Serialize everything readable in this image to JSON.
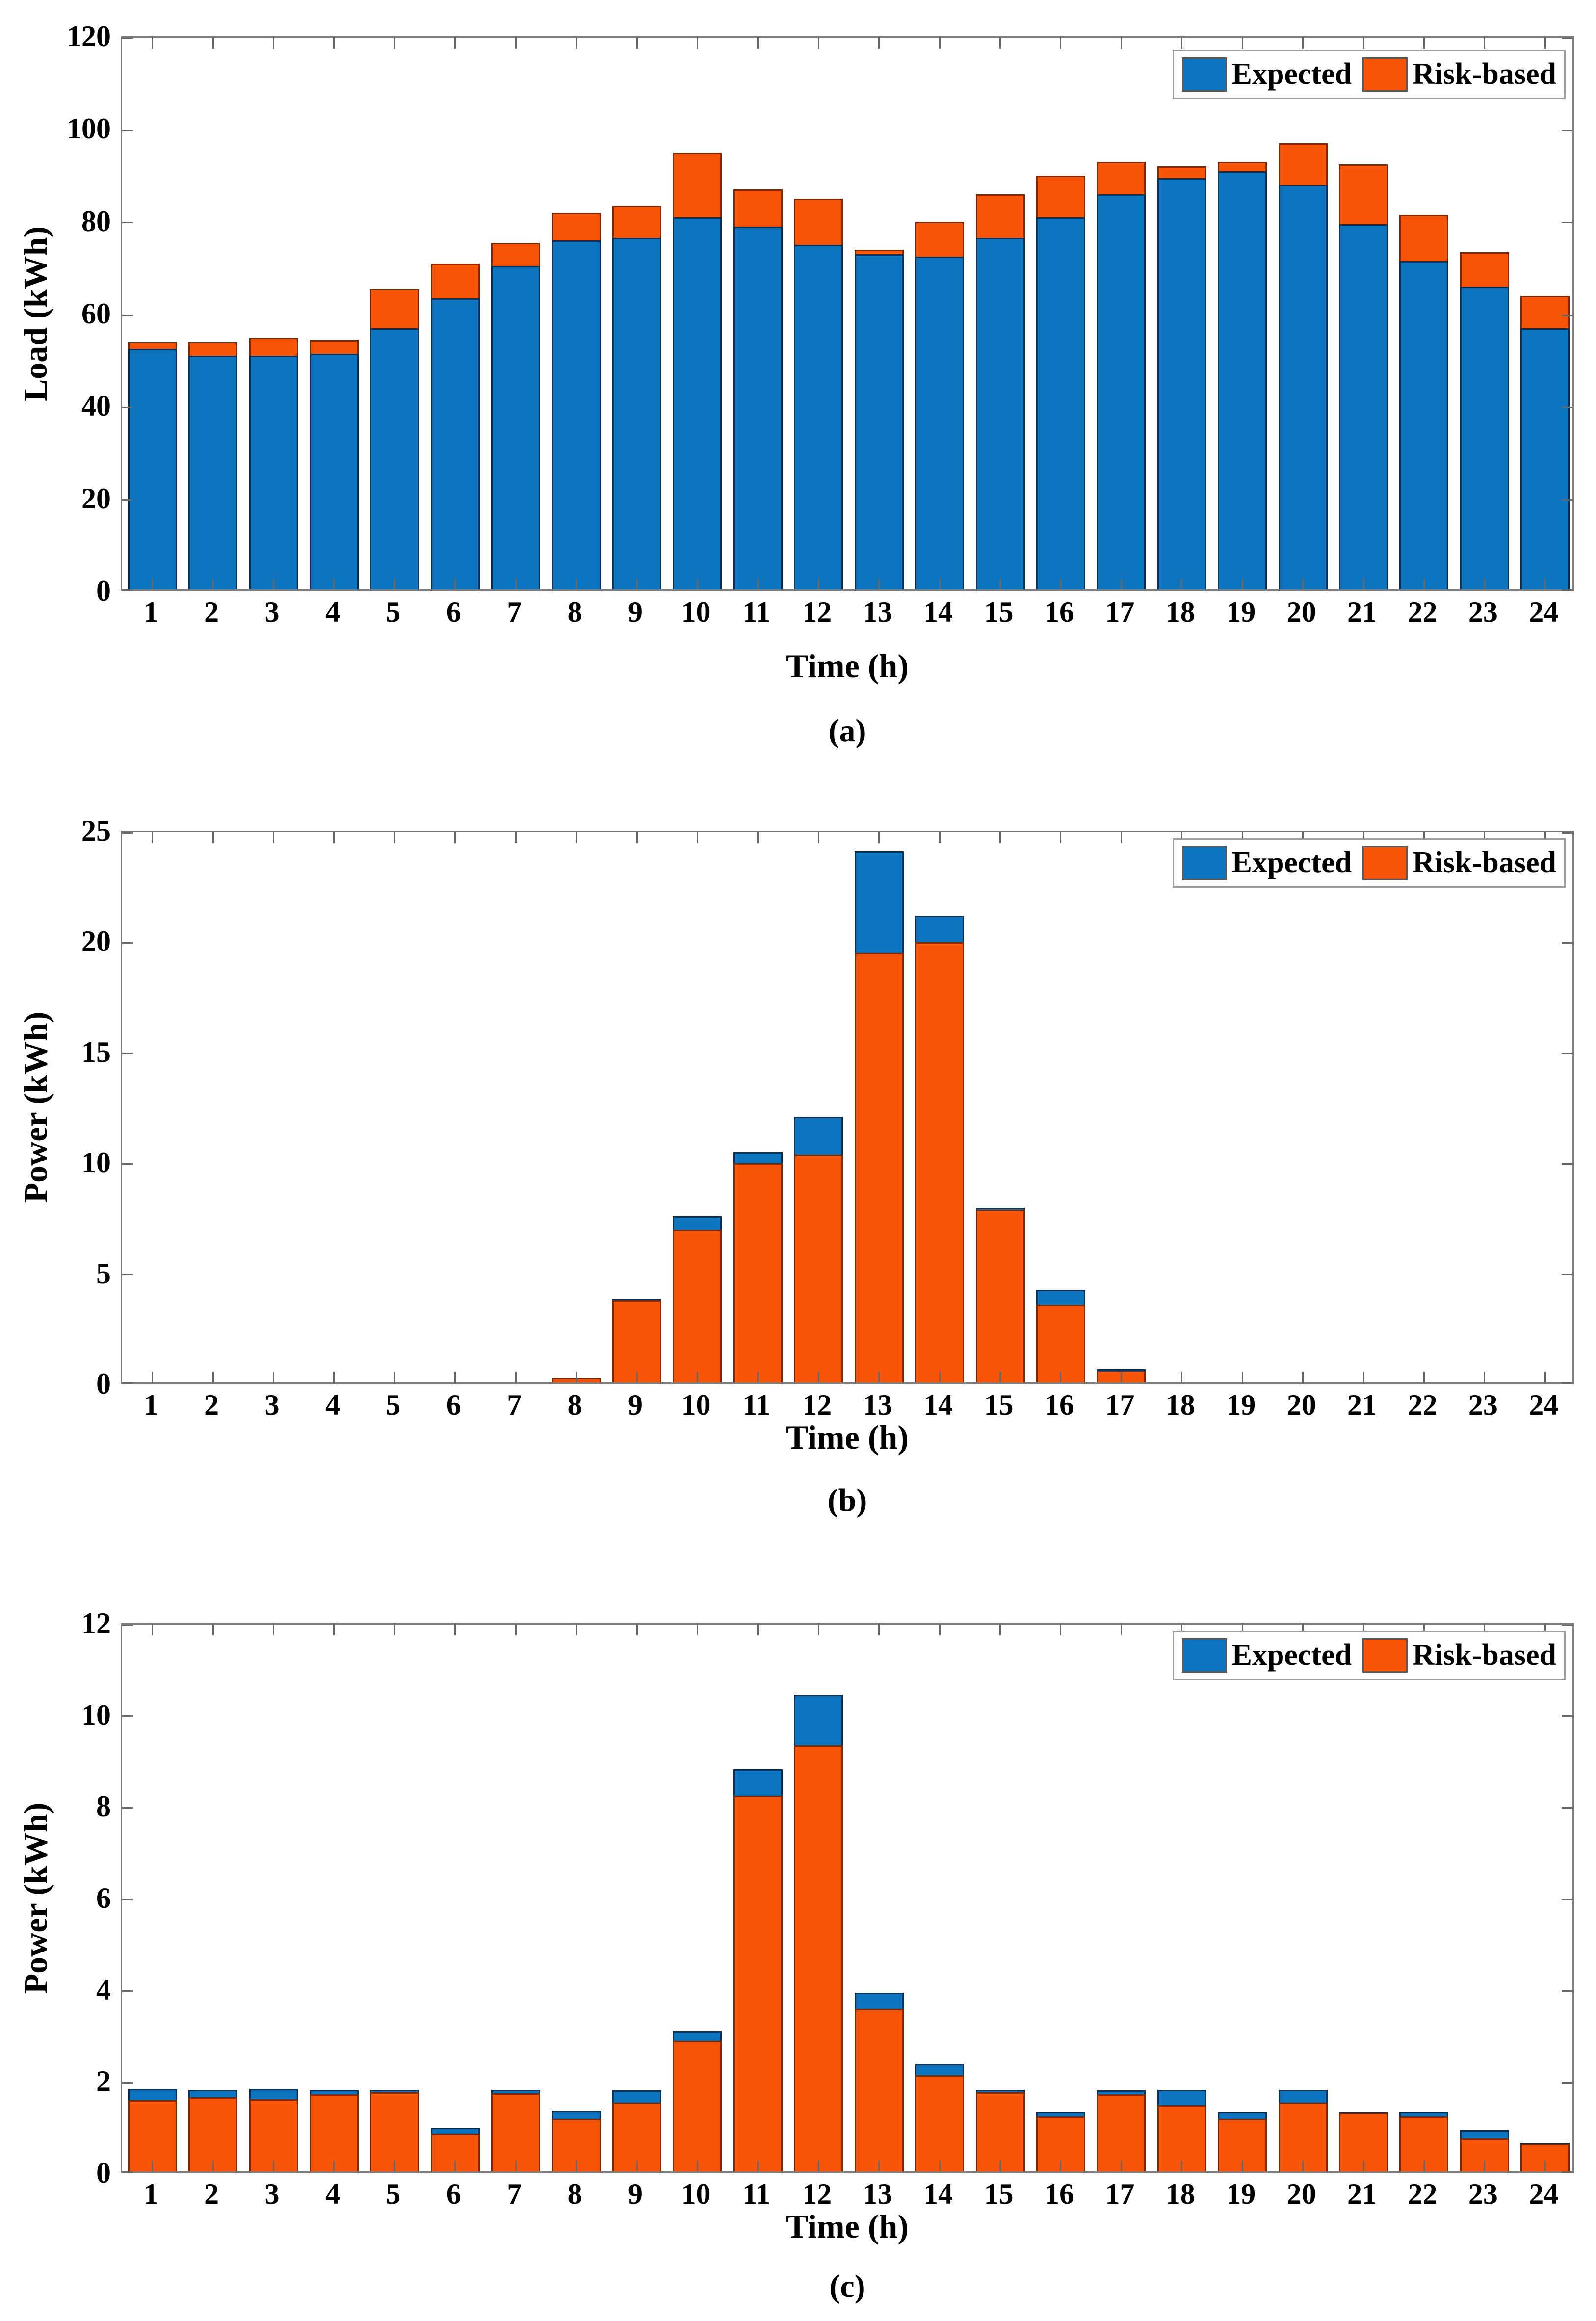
{
  "figure": {
    "description": "Three stacked panels of 24-hour bar charts comparing Expected and Risk-based profiles",
    "panels": [
      "(a)",
      "(b)",
      "(c)"
    ]
  },
  "colors": {
    "expected_fill": "#0d74bf",
    "expected_edge": "#0b2f52",
    "risk_fill": "#f85508",
    "risk_edge": "#7c2900",
    "axis": "#7c7c7c",
    "tick": "#686868",
    "text": "#000000",
    "legend_border": "#9c9c9c"
  },
  "chart_data": [
    {
      "panel": "(a)",
      "type": "bar",
      "overlay": true,
      "xlabel": "Time (h)",
      "ylabel": "Load (kWh)",
      "ylim": [
        0,
        120
      ],
      "yticks": [
        0,
        20,
        40,
        60,
        80,
        100,
        120
      ],
      "categories": [
        1,
        2,
        3,
        4,
        5,
        6,
        7,
        8,
        9,
        10,
        11,
        12,
        13,
        14,
        15,
        16,
        17,
        18,
        19,
        20,
        21,
        22,
        23,
        24
      ],
      "legend_position": "top-right",
      "front_series": "Expected",
      "series": [
        {
          "name": "Expected",
          "color_key": "expected",
          "values": [
            52,
            50.5,
            50.5,
            51,
            56.5,
            63,
            70,
            75.5,
            76,
            80.5,
            78.5,
            74.5,
            72.5,
            72,
            76,
            80.5,
            85.5,
            89,
            90.5,
            87.5,
            79,
            71,
            65.5,
            56.5
          ]
        },
        {
          "name": "Risk-based",
          "color_key": "risk",
          "values": [
            53.5,
            53.5,
            54.5,
            54,
            65,
            70.5,
            75,
            81.5,
            83,
            94.5,
            86.5,
            84.5,
            73.5,
            79.5,
            85.5,
            89.5,
            92.5,
            91.5,
            92.5,
            96.5,
            92,
            81,
            73,
            63.5
          ]
        }
      ]
    },
    {
      "panel": "(b)",
      "type": "bar",
      "overlay": true,
      "xlabel": "Time (h)",
      "ylabel": "Power (kWh)",
      "ylim": [
        0,
        25
      ],
      "yticks": [
        0,
        5,
        10,
        15,
        20,
        25
      ],
      "categories": [
        1,
        2,
        3,
        4,
        5,
        6,
        7,
        8,
        9,
        10,
        11,
        12,
        13,
        14,
        15,
        16,
        17,
        18,
        19,
        20,
        21,
        22,
        23,
        24
      ],
      "legend_position": "top-right",
      "front_series": "Risk-based",
      "series": [
        {
          "name": "Expected",
          "color_key": "expected",
          "values": [
            0,
            0,
            0,
            0,
            0,
            0,
            0,
            0.2,
            3.75,
            7.5,
            10.4,
            12,
            24,
            21.1,
            7.9,
            4.2,
            0.6,
            0,
            0,
            0,
            0,
            0,
            0,
            0
          ]
        },
        {
          "name": "Risk-based",
          "color_key": "risk",
          "values": [
            0,
            0,
            0,
            0,
            0,
            0,
            0,
            0.2,
            3.7,
            6.9,
            9.9,
            10.3,
            19.4,
            19.9,
            7.8,
            3.5,
            0.5,
            0,
            0,
            0,
            0,
            0,
            0,
            0
          ]
        }
      ]
    },
    {
      "panel": "(c)",
      "type": "bar",
      "overlay": true,
      "xlabel": "Time (h)",
      "ylabel": "Power (kWh)",
      "ylim": [
        0,
        12
      ],
      "yticks": [
        0,
        2,
        4,
        6,
        8,
        10,
        12
      ],
      "categories": [
        1,
        2,
        3,
        4,
        5,
        6,
        7,
        8,
        9,
        10,
        11,
        12,
        13,
        14,
        15,
        16,
        17,
        18,
        19,
        20,
        21,
        22,
        23,
        24
      ],
      "legend_position": "top-right",
      "front_series": "Risk-based",
      "series": [
        {
          "name": "Expected",
          "color_key": "expected",
          "values": [
            1.8,
            1.78,
            1.8,
            1.78,
            1.78,
            0.95,
            1.78,
            1.32,
            1.77,
            3.05,
            8.78,
            10.4,
            3.9,
            2.35,
            1.78,
            1.3,
            1.77,
            1.78,
            1.3,
            1.78,
            1.3,
            1.3,
            0.9,
            0.62
          ]
        },
        {
          "name": "Risk-based",
          "color_key": "risk",
          "values": [
            1.55,
            1.62,
            1.58,
            1.68,
            1.73,
            0.83,
            1.7,
            1.15,
            1.5,
            2.85,
            8.2,
            9.3,
            3.55,
            2.1,
            1.72,
            1.2,
            1.68,
            1.45,
            1.15,
            1.5,
            1.28,
            1.2,
            0.72,
            0.6
          ]
        }
      ]
    }
  ]
}
